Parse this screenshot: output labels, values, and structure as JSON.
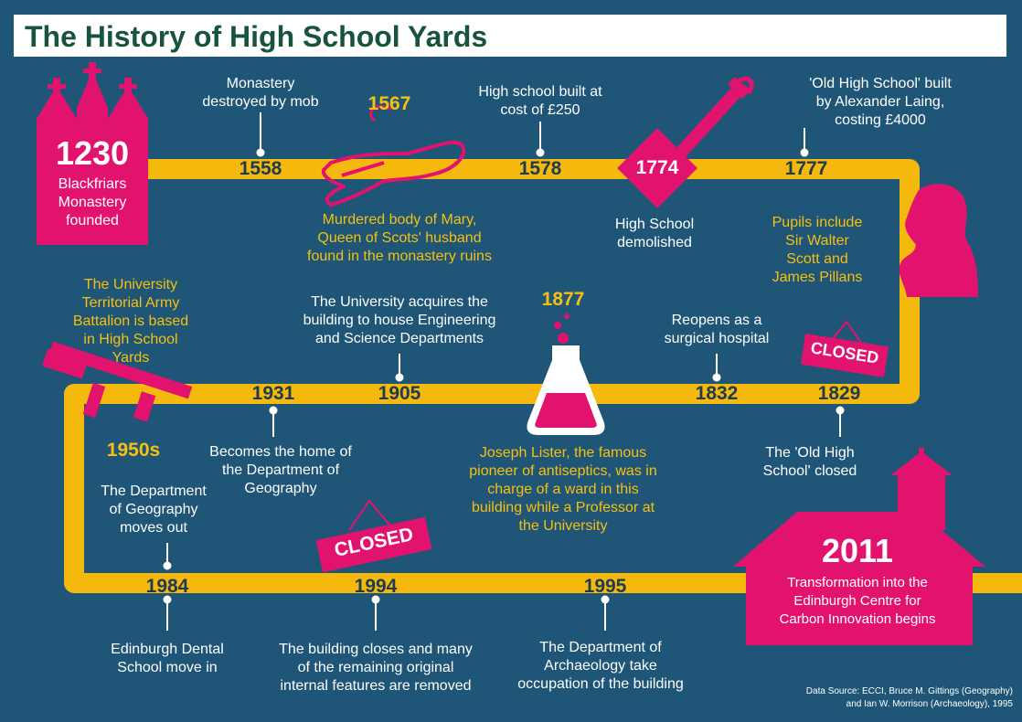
{
  "title": "The History of High School Yards",
  "colors": {
    "background": "#1f5576",
    "timeline": "#f5b80d",
    "accent": "#e2136e",
    "year_text": "#1d3c52",
    "highlight_text": "#f5c012"
  },
  "events": {
    "e1230": {
      "year": "1230",
      "text": [
        "Blackfriars",
        "Monastery",
        "founded"
      ]
    },
    "e1558": {
      "year": "1558",
      "text": [
        "Monastery",
        "destroyed by mob"
      ]
    },
    "e1567": {
      "year": "1567",
      "text": [
        "Murdered body of Mary,",
        "Queen of Scots' husband",
        "found in the monastery ruins"
      ]
    },
    "e1578": {
      "year": "1578",
      "text": [
        "High school built at",
        "cost of £250"
      ]
    },
    "e1774": {
      "year": "1774",
      "text": [
        "High School",
        "demolished"
      ]
    },
    "e1777": {
      "year": "1777",
      "text": [
        "'Old High School' built",
        "by Alexander Laing,",
        "costing £4000"
      ],
      "extra": [
        "Pupils include",
        "Sir Walter",
        "Scott and",
        "James Pillans"
      ]
    },
    "e1829": {
      "year": "1829",
      "text": [
        "The 'Old High",
        "School' closed"
      ],
      "sign": "CLOSED"
    },
    "e1832": {
      "year": "1832",
      "text": [
        "Reopens as a",
        "surgical hospital"
      ]
    },
    "e1877": {
      "year": "1877",
      "text": [
        "Joseph Lister, the famous",
        "pioneer of antiseptics, was in",
        "charge of a ward in this",
        "building while a Professor at",
        "the University"
      ]
    },
    "e1905": {
      "year": "1905",
      "text": [
        "The University acquires the",
        "building to house Engineering",
        "and Science Departments"
      ]
    },
    "e1931": {
      "year": "1931",
      "text": [
        "Becomes the home of",
        "the Department of",
        "Geography"
      ]
    },
    "e1950s": {
      "year": "1950s",
      "text": [
        "The University",
        "Territorial Army",
        "Battalion is based",
        "in High School",
        "Yards"
      ]
    },
    "e1984": {
      "year": "1984",
      "text": [
        "Edinburgh Dental",
        "School move in"
      ],
      "pre": [
        "The Department",
        "of Geography",
        "moves out"
      ]
    },
    "e1994": {
      "year": "1994",
      "text": [
        "The building closes and many",
        "of the remaining original",
        "internal features are removed"
      ],
      "sign": "CLOSED"
    },
    "e1995": {
      "year": "1995",
      "text": [
        "The Department of",
        "Archaeology take",
        "occupation of the building"
      ]
    },
    "e2011": {
      "year": "2011",
      "text": [
        "Transformation into the",
        "Edinburgh Centre for",
        "Carbon Innovation begins"
      ]
    }
  },
  "source": [
    "Data Source: ECCI, Bruce M. Gittings (Geography)",
    "and Ian W. Morrison (Archaeology), 1995"
  ],
  "icons": [
    "cathedral-icon",
    "chalk-outline-icon",
    "spade-icon",
    "portrait-silhouette-icon",
    "flask-icon",
    "rifle-icon",
    "building-icon",
    "closed-sign-icon"
  ]
}
